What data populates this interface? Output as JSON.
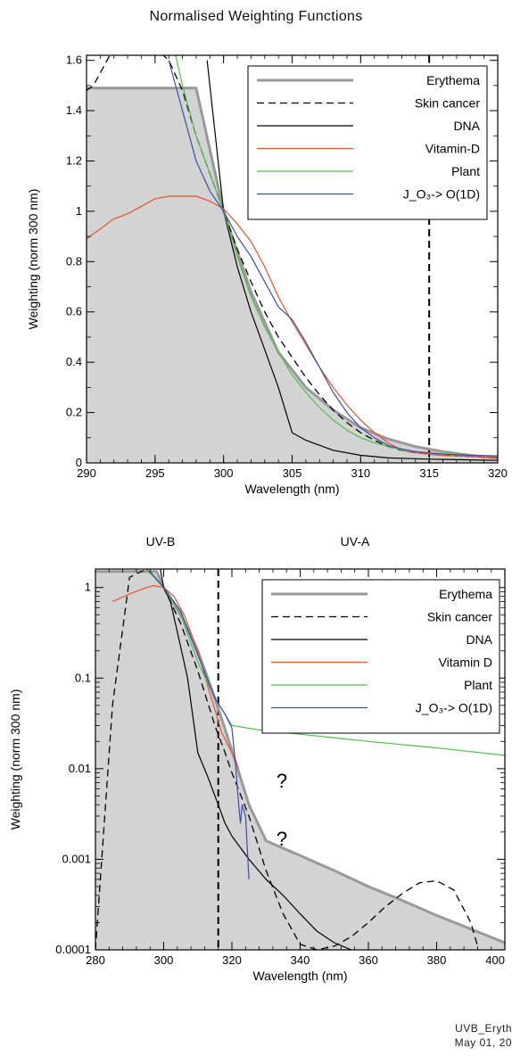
{
  "page": {
    "title": "Normalised Weighting Functions",
    "footer_line1": "UVB_Eryth",
    "footer_line2": "May 01, 20"
  },
  "legend_entries": [
    {
      "name": "Erythema",
      "color": "#999999",
      "width": 3,
      "dash": ""
    },
    {
      "name": "Skin cancer",
      "color": "#000000",
      "width": 1.3,
      "dash": "8,5"
    },
    {
      "name": "DNA",
      "color": "#000000",
      "width": 1.2,
      "dash": ""
    },
    {
      "name": "Vitamin-D",
      "color": "#e8502f",
      "width": 1.2,
      "dash": ""
    },
    {
      "name": "Plant",
      "color": "#4fbf4f",
      "width": 1.2,
      "dash": ""
    },
    {
      "name": "J_O₃-> O(1D)",
      "color": "#3a4fa8",
      "width": 1.2,
      "dash": ""
    }
  ],
  "legend_entries_bottom": [
    "Erythema",
    "Skin cancer",
    "DNA",
    "Vitamin D",
    "Plant",
    "J_O₃-> O(1D)"
  ],
  "chart_data": [
    {
      "type": "line",
      "title": "Normalised Weighting Functions",
      "xlabel": "Wavelength (nm)",
      "ylabel": "Weighting (norm 300 nm)",
      "xlim": [
        290,
        320
      ],
      "ylim": [
        0,
        1.62
      ],
      "x_ticks": [
        290,
        295,
        300,
        305,
        310,
        315,
        320
      ],
      "y_ticks": [
        0,
        0.2,
        0.4,
        0.6,
        0.8,
        1,
        1.2,
        1.4,
        1.6
      ],
      "x_tick_labels": [
        "290",
        "295",
        "300",
        "305",
        "310",
        "315",
        "320"
      ],
      "y_tick_labels": [
        "0",
        "0.2",
        "0.4",
        "0.6",
        "0.8",
        "1",
        "1.2",
        "1.4",
        "1.6"
      ],
      "vline_x": 315,
      "legend_position": "top-right",
      "series": [
        {
          "name": "Erythema",
          "fill": true,
          "x": [
            290,
            298,
            300,
            302,
            304,
            306,
            308,
            310,
            312,
            314,
            316,
            318,
            320
          ],
          "y": [
            1.49,
            1.49,
            1.0,
            0.68,
            0.44,
            0.3,
            0.21,
            0.14,
            0.095,
            0.065,
            0.045,
            0.03,
            0.02
          ]
        },
        {
          "name": "Skin cancer",
          "x": [
            290,
            290.5,
            292,
            293,
            294,
            295,
            296,
            297,
            298,
            299,
            300,
            301,
            302,
            303,
            304,
            305,
            306,
            307,
            308,
            309,
            310,
            311,
            312,
            313,
            314,
            315,
            316,
            318,
            320
          ],
          "y": [
            1.48,
            1.5,
            1.65,
            1.72,
            1.7,
            1.65,
            1.6,
            1.48,
            1.3,
            1.15,
            1.0,
            0.85,
            0.72,
            0.6,
            0.5,
            0.42,
            0.34,
            0.27,
            0.21,
            0.16,
            0.12,
            0.09,
            0.065,
            0.05,
            0.04,
            0.035,
            0.03,
            0.025,
            0.02
          ]
        },
        {
          "name": "DNA",
          "x": [
            298.8,
            300,
            301,
            302,
            303,
            304,
            305,
            306,
            308,
            310,
            312,
            315,
            318,
            320
          ],
          "y": [
            1.6,
            1.0,
            0.78,
            0.6,
            0.45,
            0.3,
            0.12,
            0.09,
            0.05,
            0.03,
            0.02,
            0.015,
            0.012,
            0.01
          ]
        },
        {
          "name": "Vitamin-D",
          "x": [
            290,
            291,
            292,
            293,
            294,
            295,
            296,
            297,
            298,
            299,
            300,
            301,
            302,
            303,
            304,
            305,
            306,
            307,
            308,
            309,
            310,
            311,
            312,
            313,
            314,
            315,
            316,
            318,
            320
          ],
          "y": [
            0.89,
            0.93,
            0.97,
            0.99,
            1.02,
            1.05,
            1.06,
            1.06,
            1.06,
            1.04,
            1.01,
            0.95,
            0.88,
            0.78,
            0.66,
            0.56,
            0.47,
            0.38,
            0.3,
            0.23,
            0.17,
            0.12,
            0.08,
            0.05,
            0.04,
            0.035,
            0.03,
            0.025,
            0.02
          ]
        },
        {
          "name": "Plant",
          "x": [
            296.5,
            297,
            298,
            299,
            300,
            301,
            302,
            303,
            304,
            305,
            306,
            307,
            308,
            309,
            310,
            311,
            312,
            313,
            314,
            315,
            316,
            317,
            318,
            320
          ],
          "y": [
            1.62,
            1.5,
            1.3,
            1.15,
            1.0,
            0.82,
            0.66,
            0.54,
            0.44,
            0.35,
            0.28,
            0.22,
            0.17,
            0.13,
            0.1,
            0.08,
            0.065,
            0.052,
            0.045,
            0.04,
            0.036,
            0.032,
            0.03,
            0.026
          ]
        },
        {
          "name": "J_O₃-> O(1D)",
          "x": [
            296,
            297,
            298,
            299,
            300,
            301,
            302,
            303,
            304,
            305,
            306,
            307,
            308,
            309,
            310,
            311,
            312,
            313,
            314,
            315,
            316,
            318,
            320
          ],
          "y": [
            1.6,
            1.4,
            1.2,
            1.08,
            1.0,
            0.9,
            0.82,
            0.72,
            0.62,
            0.57,
            0.48,
            0.38,
            0.28,
            0.2,
            0.14,
            0.1,
            0.07,
            0.055,
            0.045,
            0.04,
            0.035,
            0.03,
            0.028
          ]
        }
      ]
    },
    {
      "type": "line",
      "title": "",
      "xlabel": "Wavelength (nm)",
      "ylabel": "Weighting (norm 300 nm)",
      "xlim": [
        280,
        400
      ],
      "ylim": [
        0.0001,
        1.6
      ],
      "yscale": "log",
      "x_ticks": [
        280,
        300,
        320,
        340,
        360,
        380,
        400
      ],
      "y_ticks": [
        0.0001,
        0.001,
        0.01,
        0.1,
        1
      ],
      "x_tick_labels": [
        "280",
        "300",
        "320",
        "340",
        "360",
        "380",
        "400"
      ],
      "y_tick_labels": [
        "0.0001",
        "0.001",
        "0.01",
        "0.1",
        "1"
      ],
      "vline_x": 316,
      "region_labels": [
        "UV-B",
        "UV-A"
      ],
      "annotations": [
        "?",
        "?"
      ],
      "legend_position": "top-right",
      "series": [
        {
          "name": "Erythema",
          "fill": true,
          "x": [
            280,
            298,
            300,
            305,
            310,
            315,
            320,
            325,
            330,
            340,
            350,
            360,
            370,
            380,
            390,
            400
          ],
          "y": [
            1.5,
            1.5,
            1.0,
            0.5,
            0.2,
            0.06,
            0.016,
            0.004,
            0.0016,
            0.0011,
            0.00075,
            0.0005,
            0.00035,
            0.00024,
            0.00017,
            0.00012
          ]
        },
        {
          "name": "Skin cancer",
          "x": [
            280,
            285,
            290,
            295,
            300,
            305,
            310,
            315,
            318,
            320,
            325,
            330,
            335,
            340,
            345,
            350,
            355,
            360,
            365,
            370,
            375,
            380,
            385,
            390,
            392
          ],
          "y": [
            0.0001,
            0.05,
            1.3,
            1.6,
            1.0,
            0.4,
            0.12,
            0.03,
            0.015,
            0.009,
            0.003,
            0.00075,
            0.00025,
            0.000115,
            0.0001,
            0.00011,
            0.00014,
            0.0002,
            0.0003,
            0.00042,
            0.00055,
            0.00058,
            0.00046,
            0.0002,
            0.00011
          ]
        },
        {
          "name": "DNA",
          "x": [
            299,
            300,
            302,
            305,
            307,
            310,
            313,
            316,
            318,
            320,
            325,
            330,
            335,
            340,
            345,
            350,
            355
          ],
          "y": [
            1.6,
            1.0,
            0.7,
            0.22,
            0.1,
            0.015,
            0.008,
            0.004,
            0.0025,
            0.0018,
            0.001,
            0.0006,
            0.0004,
            0.00025,
            0.00016,
            0.00012,
            0.0001
          ]
        },
        {
          "name": "Vitamin D",
          "x": [
            285,
            290,
            295,
            297,
            300,
            303,
            306,
            310,
            313,
            315,
            317,
            320,
            322
          ],
          "y": [
            0.7,
            0.85,
            1.0,
            1.05,
            1.0,
            0.8,
            0.5,
            0.2,
            0.08,
            0.045,
            0.025,
            0.015,
            0.01
          ]
        },
        {
          "name": "Plant",
          "x": [
            295,
            300,
            305,
            310,
            315,
            320,
            330,
            340,
            360,
            380,
            400
          ],
          "y": [
            1.6,
            1.0,
            0.5,
            0.15,
            0.06,
            0.03,
            0.026,
            0.024,
            0.02,
            0.017,
            0.014
          ]
        },
        {
          "name": "J_O₃-> O(1D)",
          "x": [
            296,
            300,
            305,
            310,
            315,
            318,
            320,
            321,
            322,
            322.5,
            323,
            324,
            325
          ],
          "y": [
            1.5,
            1.0,
            0.55,
            0.18,
            0.06,
            0.04,
            0.028,
            0.012,
            0.004,
            0.0025,
            0.004,
            0.003,
            0.0006
          ]
        }
      ]
    }
  ]
}
